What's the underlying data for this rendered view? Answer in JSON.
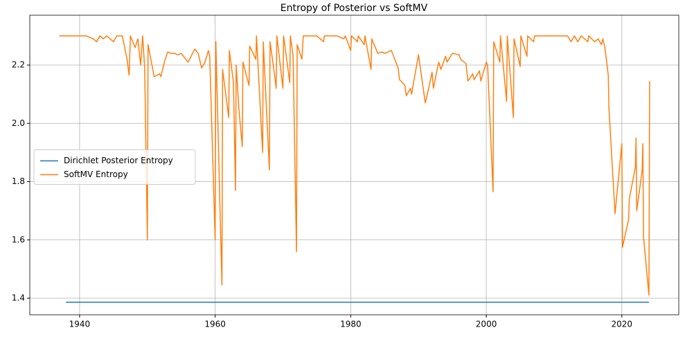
{
  "chart_data": {
    "type": "line",
    "title": "Entropy of Posterior vs SoftMV",
    "xlim": [
      1932.65,
      2028.4
    ],
    "ylim": [
      1.343,
      2.371
    ],
    "xticks": [
      1940,
      1960,
      1980,
      2000,
      2020
    ],
    "yticks": [
      {
        "value": 1.4,
        "label": "1.4"
      },
      {
        "value": 1.6,
        "label": "1.6"
      },
      {
        "value": 1.8,
        "label": "1.8"
      },
      {
        "value": 2.0,
        "label": "2.0"
      },
      {
        "value": 2.2,
        "label": "2.2"
      }
    ],
    "grid": true,
    "legend": "center left",
    "series": [
      {
        "name": "Dirichlet Posterior Entropy",
        "color": "#1f77b4",
        "x": [
          1938,
          2024
        ],
        "values": [
          1.386,
          1.386
        ]
      },
      {
        "name": "SoftMV Entropy",
        "color": "#ff7f0e",
        "x": [
          1937,
          1940,
          1941,
          1942,
          1942.5,
          1943,
          1943.5,
          1944,
          1945,
          1945.5,
          1946,
          1946.3,
          1947,
          1947.3,
          1947.5,
          1948.2,
          1948.6,
          1949,
          1949.3,
          1949.6,
          1950,
          1950.1,
          1951,
          1951.8,
          1952,
          1952.5,
          1953,
          1953.5,
          1954,
          1954.5,
          1955,
          1955.5,
          1956,
          1957,
          1957.5,
          1958,
          1958.5,
          1959,
          1959.2,
          1960,
          1960.1,
          1961,
          1961.1,
          1962,
          1962.1,
          1962.7,
          1963,
          1963.1,
          1963.5,
          1964,
          1964.1,
          1965,
          1965.1,
          1966,
          1966.1,
          1967,
          1967.1,
          1968,
          1968.1,
          1968.8,
          1969,
          1969.1,
          1970,
          1970.1,
          1971,
          1971.1,
          1971.5,
          1972,
          1972.1,
          1972.8,
          1973,
          1974,
          1975,
          1976,
          1976.1,
          1977,
          1977.3,
          1978,
          1979,
          1979.2,
          1980,
          1980.1,
          1981,
          1981.1,
          1982,
          1982.1,
          1983,
          1983.1,
          1984,
          1984.6,
          1985,
          1985.5,
          1986,
          1986.5,
          1987,
          1987.2,
          1988,
          1988.2,
          1988.8,
          1989,
          1989.2,
          1990,
          1991,
          1991.5,
          1992,
          1992.2,
          1992.8,
          1993,
          1993.3,
          1994,
          1994.2,
          1995,
          1996,
          1996.2,
          1997,
          1997.3,
          1998,
          1998.2,
          1999,
          1999.2,
          2000,
          2000.2,
          2001,
          2001.1,
          2002,
          2002.1,
          2003,
          2003.1,
          2004,
          2004.1,
          2005,
          2005.1,
          2006,
          2006.1,
          2007,
          2007.1,
          2012,
          2012.5,
          2013,
          2013.5,
          2014,
          2015,
          2015.1,
          2016,
          2016.5,
          2017,
          2017.2,
          2017.5,
          2018,
          2018.1,
          2019,
          2020,
          2020.1,
          2021,
          2021.1,
          2022,
          2022.1,
          2022.2,
          2023,
          2023.1,
          2023.2,
          2024,
          2024.1
        ],
        "values": [
          2.3,
          2.3,
          2.3,
          2.29,
          2.28,
          2.3,
          2.29,
          2.3,
          2.28,
          2.3,
          2.3,
          2.3,
          2.22,
          2.165,
          2.3,
          2.26,
          2.29,
          2.2,
          2.3,
          2.19,
          1.6,
          2.27,
          2.16,
          2.17,
          2.16,
          2.21,
          2.245,
          2.24,
          2.24,
          2.235,
          2.24,
          2.225,
          2.21,
          2.255,
          2.24,
          2.19,
          2.21,
          2.25,
          2.23,
          1.6,
          2.28,
          1.445,
          2.185,
          2.02,
          2.25,
          2.14,
          1.77,
          2.2,
          2.05,
          1.92,
          2.21,
          2.13,
          2.265,
          2.22,
          2.3,
          1.9,
          2.28,
          1.84,
          2.28,
          2.16,
          2.12,
          2.3,
          2.12,
          2.3,
          2.14,
          2.3,
          2.23,
          1.56,
          2.27,
          2.22,
          2.3,
          2.3,
          2.3,
          2.28,
          2.3,
          2.3,
          2.3,
          2.3,
          2.29,
          2.3,
          2.25,
          2.3,
          2.28,
          2.3,
          2.27,
          2.3,
          2.185,
          2.29,
          2.24,
          2.245,
          2.24,
          2.245,
          2.25,
          2.22,
          2.19,
          2.15,
          2.13,
          2.095,
          2.12,
          2.1,
          2.13,
          2.235,
          2.07,
          2.12,
          2.175,
          2.12,
          2.19,
          2.21,
          2.185,
          2.23,
          2.21,
          2.24,
          2.235,
          2.22,
          2.205,
          2.145,
          2.17,
          2.15,
          2.18,
          2.145,
          2.21,
          2.2,
          1.765,
          2.28,
          2.21,
          2.3,
          2.075,
          2.3,
          2.02,
          2.29,
          2.195,
          2.3,
          2.23,
          2.3,
          2.28,
          2.3,
          2.3,
          2.28,
          2.3,
          2.28,
          2.3,
          2.28,
          2.3,
          2.28,
          2.29,
          2.27,
          2.29,
          2.26,
          2.165,
          2.05,
          1.69,
          1.93,
          1.575,
          1.67,
          1.74,
          1.85,
          1.95,
          1.7,
          1.84,
          1.93,
          1.61,
          1.41,
          2.145
        ]
      }
    ]
  }
}
